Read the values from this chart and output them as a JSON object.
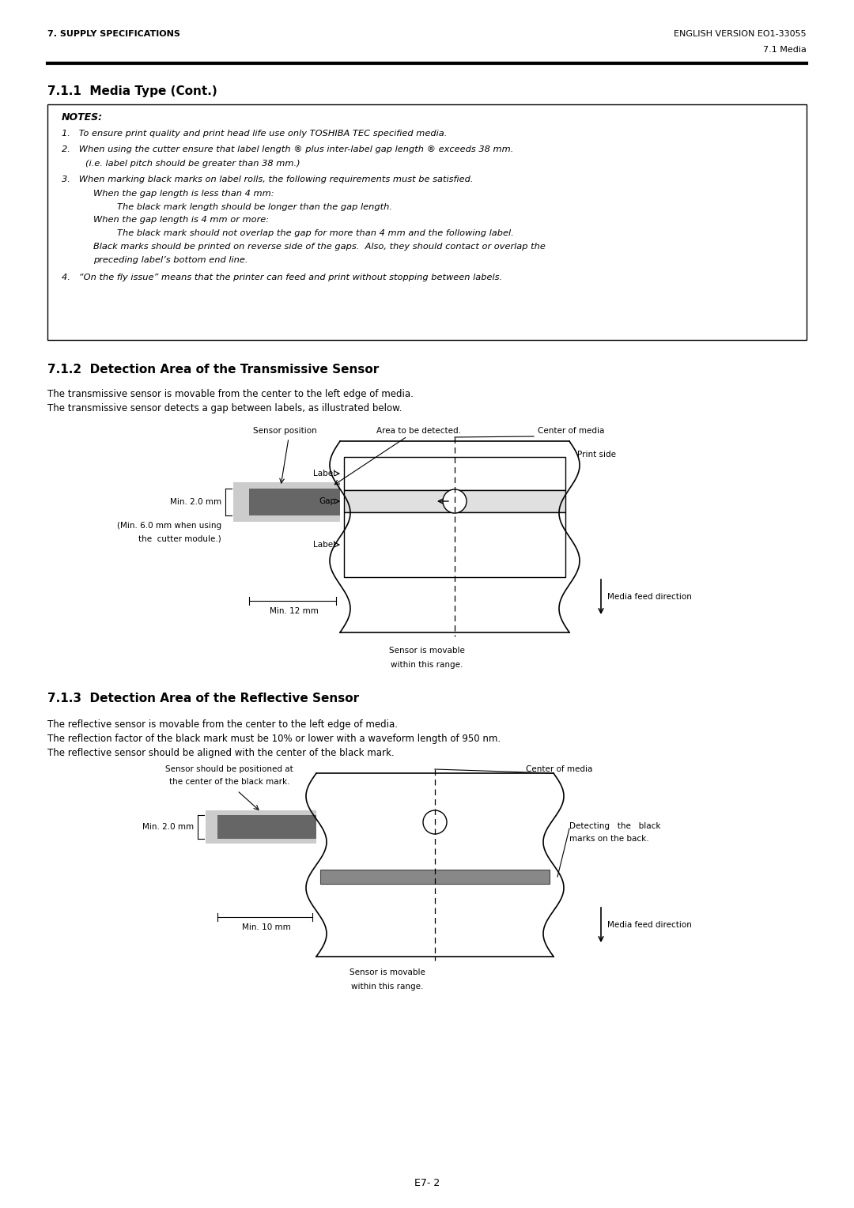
{
  "page_title_left": "7. SUPPLY SPECIFICATIONS",
  "page_title_right": "ENGLISH VERSION EO1-33055",
  "page_subtitle_right": "7.1 Media",
  "section_111_title": "7.1.1  Media Type (Cont.)",
  "notes_title": "NOTES:",
  "section_712_title": "7.1.2  Detection Area of the Transmissive Sensor",
  "section_712_text1": "The transmissive sensor is movable from the center to the left edge of media.",
  "section_712_text2": "The transmissive sensor detects a gap between labels, as illustrated below.",
  "section_713_title": "7.1.3  Detection Area of the Reflective Sensor",
  "section_713_text1": "The reflective sensor is movable from the center to the left edge of media.",
  "section_713_text2": "The reflection factor of the black mark must be 10% or lower with a waveform length of 950 nm.",
  "section_713_text3": "The reflective sensor should be aligned with the center of the black mark.",
  "page_footer": "E7- 2",
  "bg_color": "#ffffff"
}
